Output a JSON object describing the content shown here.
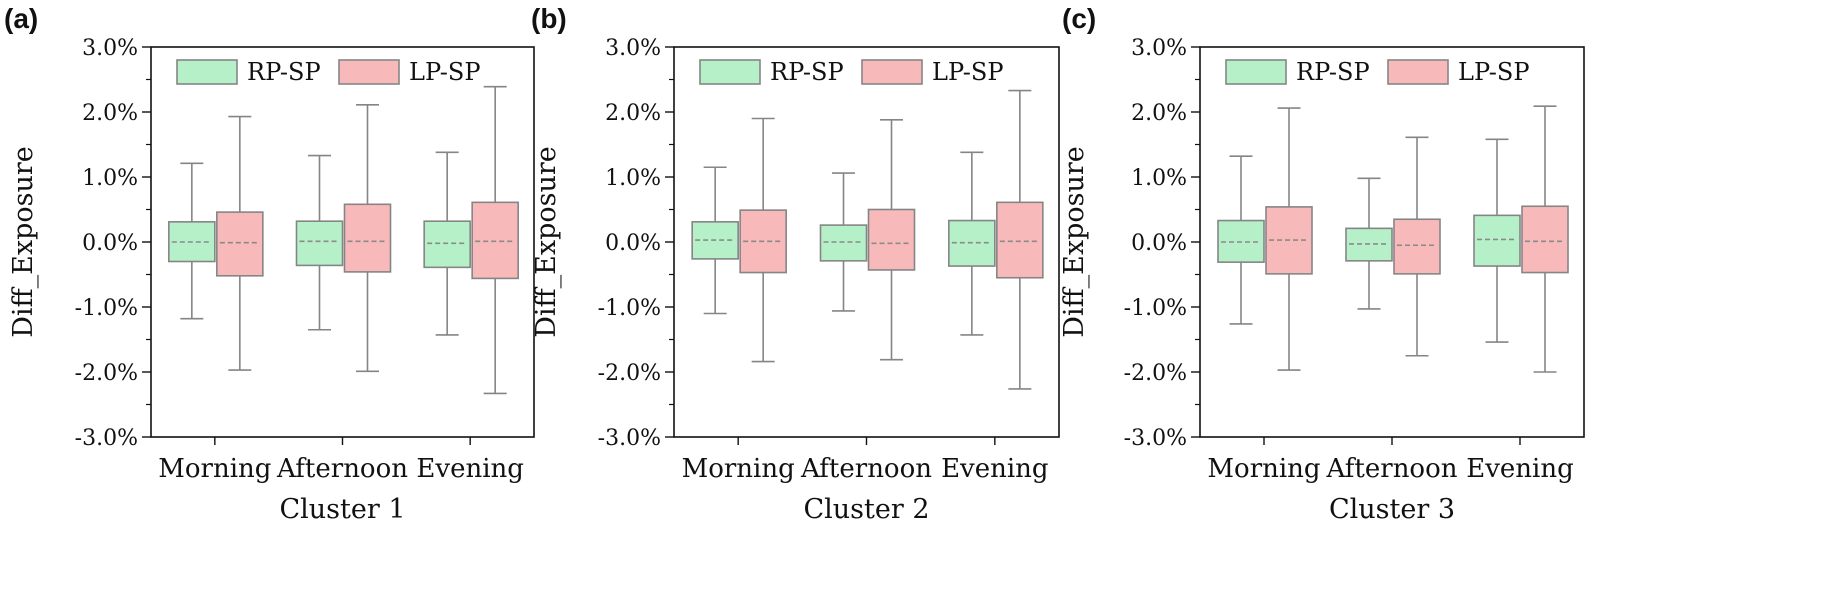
{
  "chart_data": [
    {
      "type": "box",
      "panel_label": "(a)",
      "xlabel": "Cluster 1",
      "ylabel": "Diff_Exposure",
      "ylim": [
        -3.0,
        3.0
      ],
      "y_unit": "%",
      "y_ticks": [
        3.0,
        2.0,
        1.0,
        0.0,
        -1.0,
        -2.0,
        -3.0
      ],
      "y_tick_labels": [
        "3.0%",
        "2.0%",
        "1.0%",
        "0.0%",
        "-1.0%",
        "-2.0%",
        "-3.0%"
      ],
      "categories": [
        "Morning",
        "Afternoon",
        "Evening"
      ],
      "legend_position": "top",
      "series": [
        {
          "name": "RP-SP",
          "color": "#b6f0c9",
          "boxes": [
            {
              "whisker_low": -1.18,
              "q1": -0.3,
              "median": 0.0,
              "q3": 0.31,
              "whisker_high": 1.21
            },
            {
              "whisker_low": -1.35,
              "q1": -0.36,
              "median": 0.01,
              "q3": 0.32,
              "whisker_high": 1.33
            },
            {
              "whisker_low": -1.43,
              "q1": -0.39,
              "median": -0.02,
              "q3": 0.32,
              "whisker_high": 1.38
            }
          ]
        },
        {
          "name": "LP-SP",
          "color": "#f7b9ba",
          "boxes": [
            {
              "whisker_low": -1.97,
              "q1": -0.52,
              "median": -0.01,
              "q3": 0.46,
              "whisker_high": 1.93
            },
            {
              "whisker_low": -1.99,
              "q1": -0.46,
              "median": 0.01,
              "q3": 0.58,
              "whisker_high": 2.11
            },
            {
              "whisker_low": -2.33,
              "q1": -0.56,
              "median": 0.01,
              "q3": 0.61,
              "whisker_high": 2.39
            }
          ]
        }
      ]
    },
    {
      "type": "box",
      "panel_label": "(b)",
      "xlabel": "Cluster 2",
      "ylabel": "Diff_Exposure",
      "ylim": [
        -3.0,
        3.0
      ],
      "y_unit": "%",
      "y_ticks": [
        3.0,
        2.0,
        1.0,
        0.0,
        -1.0,
        -2.0,
        -3.0
      ],
      "y_tick_labels": [
        "3.0%",
        "2.0%",
        "1.0%",
        "0.0%",
        "-1.0%",
        "-2.0%",
        "-3.0%"
      ],
      "categories": [
        "Morning",
        "Afternoon",
        "Evening"
      ],
      "legend_position": "top",
      "series": [
        {
          "name": "RP-SP",
          "color": "#b6f0c9",
          "boxes": [
            {
              "whisker_low": -1.1,
              "q1": -0.26,
              "median": 0.03,
              "q3": 0.31,
              "whisker_high": 1.15
            },
            {
              "whisker_low": -1.06,
              "q1": -0.29,
              "median": 0.0,
              "q3": 0.26,
              "whisker_high": 1.06
            },
            {
              "whisker_low": -1.43,
              "q1": -0.37,
              "median": -0.01,
              "q3": 0.33,
              "whisker_high": 1.38
            }
          ]
        },
        {
          "name": "LP-SP",
          "color": "#f7b9ba",
          "boxes": [
            {
              "whisker_low": -1.84,
              "q1": -0.47,
              "median": 0.01,
              "q3": 0.49,
              "whisker_high": 1.9
            },
            {
              "whisker_low": -1.81,
              "q1": -0.43,
              "median": -0.02,
              "q3": 0.5,
              "whisker_high": 1.88
            },
            {
              "whisker_low": -2.26,
              "q1": -0.55,
              "median": 0.01,
              "q3": 0.61,
              "whisker_high": 2.33
            }
          ]
        }
      ]
    },
    {
      "type": "box",
      "panel_label": "(c)",
      "xlabel": "Cluster 3",
      "ylabel": "Diff_Exposure",
      "ylim": [
        -3.0,
        3.0
      ],
      "y_unit": "%",
      "y_ticks": [
        3.0,
        2.0,
        1.0,
        0.0,
        -1.0,
        -2.0,
        -3.0
      ],
      "y_tick_labels": [
        "3.0%",
        "2.0%",
        "1.0%",
        "0.0%",
        "-1.0%",
        "-2.0%",
        "-3.0%"
      ],
      "categories": [
        "Morning",
        "Afternoon",
        "Evening"
      ],
      "legend_position": "top",
      "series": [
        {
          "name": "RP-SP",
          "color": "#b6f0c9",
          "boxes": [
            {
              "whisker_low": -1.26,
              "q1": -0.31,
              "median": 0.0,
              "q3": 0.33,
              "whisker_high": 1.32
            },
            {
              "whisker_low": -1.03,
              "q1": -0.29,
              "median": -0.03,
              "q3": 0.21,
              "whisker_high": 0.98
            },
            {
              "whisker_low": -1.54,
              "q1": -0.37,
              "median": 0.04,
              "q3": 0.41,
              "whisker_high": 1.58
            }
          ]
        },
        {
          "name": "LP-SP",
          "color": "#f7b9ba",
          "boxes": [
            {
              "whisker_low": -1.97,
              "q1": -0.49,
              "median": 0.03,
              "q3": 0.54,
              "whisker_high": 2.06
            },
            {
              "whisker_low": -1.75,
              "q1": -0.49,
              "median": -0.05,
              "q3": 0.35,
              "whisker_high": 1.61
            },
            {
              "whisker_low": -2.0,
              "q1": -0.47,
              "median": 0.01,
              "q3": 0.55,
              "whisker_high": 2.09
            }
          ]
        }
      ]
    }
  ],
  "colors": {
    "box_edge": "#858585",
    "median_line": "#8a8a8a",
    "axis": "#111111"
  }
}
